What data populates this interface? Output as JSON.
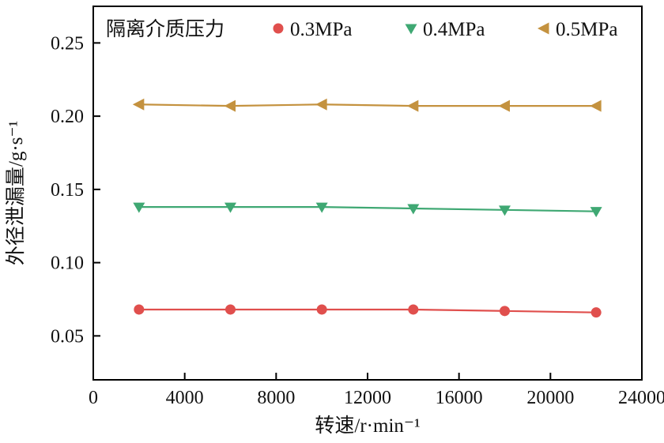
{
  "chart_data": {
    "type": "line",
    "title": "",
    "xlabel": "转速/r·min⁻¹",
    "ylabel": "外径泄漏量/g·s⁻¹",
    "xlim": [
      0,
      24000
    ],
    "ylim": [
      0.02,
      0.275
    ],
    "xticks": [
      0,
      4000,
      8000,
      12000,
      16000,
      20000,
      24000
    ],
    "yticks": [
      0.05,
      0.1,
      0.15,
      0.2,
      0.25
    ],
    "grid": false,
    "legend_title": "隔离介质压力",
    "legend_position": "top-inside",
    "frame_color": "#000000",
    "x": [
      2000,
      6000,
      10000,
      14000,
      18000,
      22000
    ],
    "series": [
      {
        "name": "0.3MPa",
        "color": "#e04f4d",
        "marker": "circle",
        "values": [
          0.068,
          0.068,
          0.068,
          0.068,
          0.067,
          0.066
        ]
      },
      {
        "name": "0.4MPa",
        "color": "#3fa873",
        "marker": "triangle-down",
        "values": [
          0.138,
          0.138,
          0.138,
          0.137,
          0.136,
          0.135
        ]
      },
      {
        "name": "0.5MPa",
        "color": "#c4923f",
        "marker": "triangle-left",
        "values": [
          0.208,
          0.207,
          0.208,
          0.207,
          0.207,
          0.207
        ]
      }
    ]
  }
}
